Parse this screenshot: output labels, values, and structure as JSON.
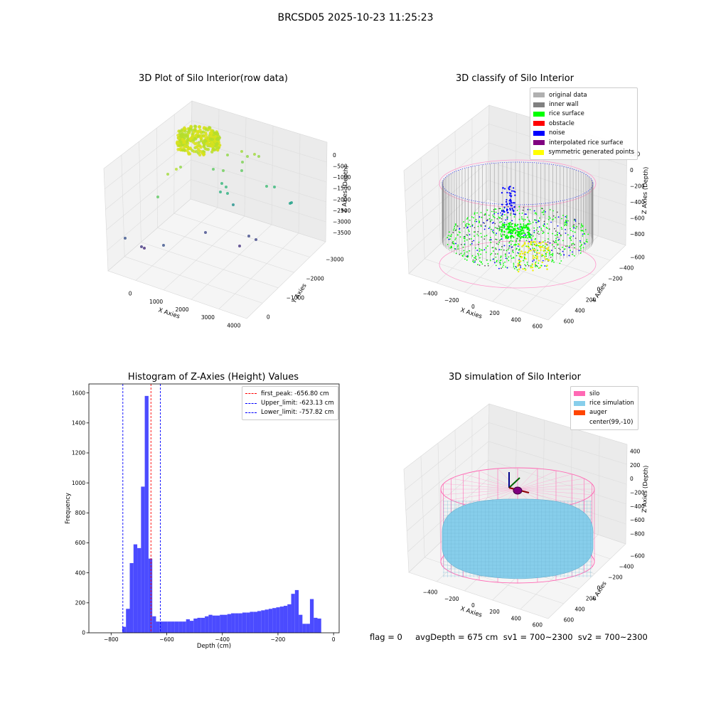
{
  "figure": {
    "title": "BRCSD05 2025-10-23 11:25:23",
    "footer": "flag = 0     avgDepth = 675 cm  sv1 = 700~2300  sv2 = 700~2300"
  },
  "panels": {
    "raw": {
      "title": "3D Plot of Silo Interior(row data)",
      "xlabel": "X Axies",
      "ylabel": "Y Axies",
      "zlabel": "Z Axies (Depth)",
      "x_ticks": [
        "0",
        "1000",
        "2000",
        "3000",
        "4000"
      ],
      "y_ticks": [
        "0",
        "−1000",
        "−2000",
        "−3000"
      ],
      "z_ticks": [
        "0",
        "−500",
        "−1000",
        "−1500",
        "−2000",
        "−2500",
        "−3000",
        "−3500"
      ]
    },
    "classify": {
      "title": "3D classify of Silo Interior",
      "xlabel": "X Axies",
      "ylabel": "Y Axies",
      "zlabel": "Z Axies (Depth)",
      "x_ticks": [
        "−400",
        "−200",
        "0",
        "200",
        "400",
        "600"
      ],
      "y_ticks": [
        "600",
        "400",
        "200",
        "0",
        "−200",
        "−400",
        "−600"
      ],
      "z_ticks": [
        "200",
        "0",
        "−200",
        "−400",
        "−600",
        "−800"
      ],
      "legend": [
        {
          "label": "original data",
          "color": "#b0b0b0"
        },
        {
          "label": "inner wall",
          "color": "#808080"
        },
        {
          "label": "rice surface",
          "color": "#00ff00"
        },
        {
          "label": "obstacle",
          "color": "#ff0000"
        },
        {
          "label": "noise",
          "color": "#0000ff"
        },
        {
          "label": "interpolated rice surface",
          "color": "#800080"
        },
        {
          "label": "symmetric generated points",
          "color": "#ffff00"
        }
      ]
    },
    "histogram": {
      "title": "Histogram of Z-Axies (Height) Values",
      "xlabel": "Depth (cm)",
      "ylabel": "Frequency",
      "legend": [
        {
          "label": "first_peak: -656.80 cm",
          "color": "#ff0000"
        },
        {
          "label": "Upper_limit: -623.13 cm",
          "color": "#0000ff"
        },
        {
          "label": "Lower_limit: -757.82 cm",
          "color": "#0000ff"
        }
      ]
    },
    "simulation": {
      "title": "3D simulation of Silo Interior",
      "xlabel": "X Axies",
      "ylabel": "Y Axies",
      "zlabel": "Z Axies (Depth)",
      "x_ticks": [
        "−400",
        "−200",
        "0",
        "200",
        "400",
        "600"
      ],
      "y_ticks": [
        "600",
        "400",
        "200",
        "0",
        "−200",
        "−400",
        "−600"
      ],
      "z_ticks": [
        "400",
        "200",
        "0",
        "−200",
        "−400",
        "−600",
        "−800"
      ],
      "legend": [
        {
          "label": "silo",
          "color": "#ff69b4"
        },
        {
          "label": "rice simulation",
          "color": "#87ceeb"
        },
        {
          "label": "auger",
          "color": "#ff4500"
        },
        {
          "label": "center(99,-10)",
          "color": ""
        }
      ]
    }
  },
  "chart_data": [
    {
      "type": "scatter",
      "title": "3D Plot of Silo Interior(row data)",
      "xlabel": "X Axies",
      "ylabel": "Y Axies",
      "zlabel": "Z Axies (Depth)",
      "xlim": [
        -500,
        4500
      ],
      "ylim": [
        -3500,
        500
      ],
      "zlim": [
        -3800,
        200
      ]
    },
    {
      "type": "scatter",
      "title": "3D classify of Silo Interior",
      "xlabel": "X Axies",
      "ylabel": "Y Axies",
      "zlabel": "Z Axies (Depth)",
      "xlim": [
        -500,
        700
      ],
      "ylim": [
        -700,
        700
      ],
      "zlim": [
        -900,
        300
      ]
    },
    {
      "type": "bar",
      "title": "Histogram of Z-Axies (Height) Values",
      "xlabel": "Depth (cm)",
      "ylabel": "Frequency",
      "xlim": [
        -880,
        20
      ],
      "ylim": [
        0,
        1660
      ],
      "x_ticks": [
        -800,
        -600,
        -400,
        -200,
        0
      ],
      "y_ticks": [
        0,
        200,
        400,
        600,
        800,
        1000,
        1200,
        1400,
        1600
      ],
      "bin_width": 13.5,
      "bins": [
        {
          "x0": -760,
          "count": 40
        },
        {
          "x0": -746.5,
          "count": 160
        },
        {
          "x0": -733,
          "count": 465
        },
        {
          "x0": -719.5,
          "count": 590
        },
        {
          "x0": -706,
          "count": 565
        },
        {
          "x0": -692.5,
          "count": 975
        },
        {
          "x0": -679,
          "count": 1580
        },
        {
          "x0": -665.5,
          "count": 495
        },
        {
          "x0": -652,
          "count": 110
        },
        {
          "x0": -638.5,
          "count": 75
        },
        {
          "x0": -625,
          "count": 75
        },
        {
          "x0": -611.5,
          "count": 75
        },
        {
          "x0": -598,
          "count": 75
        },
        {
          "x0": -584.5,
          "count": 75
        },
        {
          "x0": -571,
          "count": 75
        },
        {
          "x0": -557.5,
          "count": 75
        },
        {
          "x0": -544,
          "count": 75
        },
        {
          "x0": -530.5,
          "count": 90
        },
        {
          "x0": -517,
          "count": 80
        },
        {
          "x0": -503.5,
          "count": 95
        },
        {
          "x0": -490,
          "count": 100
        },
        {
          "x0": -476.5,
          "count": 100
        },
        {
          "x0": -463,
          "count": 110
        },
        {
          "x0": -449.5,
          "count": 120
        },
        {
          "x0": -436,
          "count": 115
        },
        {
          "x0": -422.5,
          "count": 115
        },
        {
          "x0": -409,
          "count": 120
        },
        {
          "x0": -395.5,
          "count": 120
        },
        {
          "x0": -382,
          "count": 125
        },
        {
          "x0": -368.5,
          "count": 130
        },
        {
          "x0": -355,
          "count": 130
        },
        {
          "x0": -341.5,
          "count": 130
        },
        {
          "x0": -328,
          "count": 135
        },
        {
          "x0": -314.5,
          "count": 135
        },
        {
          "x0": -301,
          "count": 140
        },
        {
          "x0": -287.5,
          "count": 140
        },
        {
          "x0": -274,
          "count": 145
        },
        {
          "x0": -260.5,
          "count": 150
        },
        {
          "x0": -247,
          "count": 155
        },
        {
          "x0": -233.5,
          "count": 160
        },
        {
          "x0": -220,
          "count": 165
        },
        {
          "x0": -206.5,
          "count": 170
        },
        {
          "x0": -193,
          "count": 175
        },
        {
          "x0": -179.5,
          "count": 180
        },
        {
          "x0": -166,
          "count": 190
        },
        {
          "x0": -152.5,
          "count": 260
        },
        {
          "x0": -139,
          "count": 285
        },
        {
          "x0": -125.5,
          "count": 120
        },
        {
          "x0": -112,
          "count": 60
        },
        {
          "x0": -98.5,
          "count": 60
        },
        {
          "x0": -85,
          "count": 225
        },
        {
          "x0": -71.5,
          "count": 100
        },
        {
          "x0": -58,
          "count": 95
        }
      ],
      "vlines": [
        {
          "label": "first_peak: -656.80 cm",
          "x": -656.8,
          "color": "#ff0000"
        },
        {
          "label": "Upper_limit: -623.13 cm",
          "x": -623.13,
          "color": "#0000ff"
        },
        {
          "label": "Lower_limit: -757.82 cm",
          "x": -757.82,
          "color": "#0000ff"
        }
      ],
      "bar_color": "#4b4bff",
      "legend_position": "top-right"
    },
    {
      "type": "scatter",
      "title": "3D simulation of Silo Interior",
      "xlabel": "X Axies",
      "ylabel": "Y Axies",
      "zlabel": "Z Axies (Depth)",
      "xlim": [
        -500,
        700
      ],
      "ylim": [
        -700,
        700
      ],
      "zlim": [
        -900,
        500
      ]
    }
  ]
}
